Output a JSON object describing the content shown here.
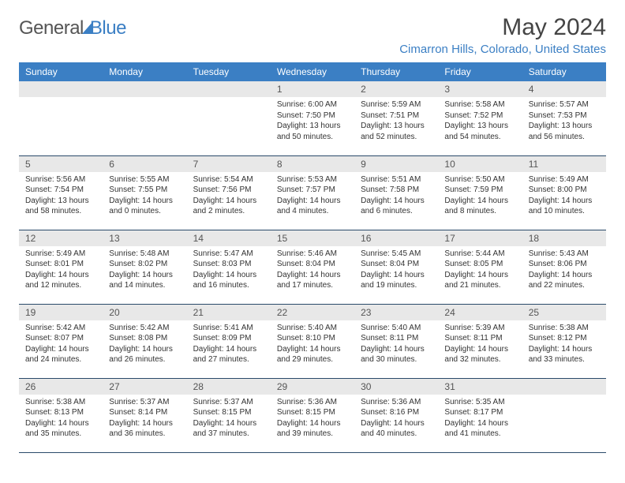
{
  "brand": {
    "part1": "General",
    "part2": "Blue"
  },
  "title": "May 2024",
  "location": "Cimarron Hills, Colorado, United States",
  "weekday_header_bg": "#3b7fc4",
  "weekday_header_fg": "#ffffff",
  "daynum_bg": "#e8e8e8",
  "cell_border_color": "#2a4a6a",
  "weekdays": [
    "Sunday",
    "Monday",
    "Tuesday",
    "Wednesday",
    "Thursday",
    "Friday",
    "Saturday"
  ],
  "weeks": [
    [
      null,
      null,
      null,
      {
        "d": "1",
        "sr": "6:00 AM",
        "ss": "7:50 PM",
        "dh": "13",
        "dm": "50"
      },
      {
        "d": "2",
        "sr": "5:59 AM",
        "ss": "7:51 PM",
        "dh": "13",
        "dm": "52"
      },
      {
        "d": "3",
        "sr": "5:58 AM",
        "ss": "7:52 PM",
        "dh": "13",
        "dm": "54"
      },
      {
        "d": "4",
        "sr": "5:57 AM",
        "ss": "7:53 PM",
        "dh": "13",
        "dm": "56"
      }
    ],
    [
      {
        "d": "5",
        "sr": "5:56 AM",
        "ss": "7:54 PM",
        "dh": "13",
        "dm": "58"
      },
      {
        "d": "6",
        "sr": "5:55 AM",
        "ss": "7:55 PM",
        "dh": "14",
        "dm": "0"
      },
      {
        "d": "7",
        "sr": "5:54 AM",
        "ss": "7:56 PM",
        "dh": "14",
        "dm": "2"
      },
      {
        "d": "8",
        "sr": "5:53 AM",
        "ss": "7:57 PM",
        "dh": "14",
        "dm": "4"
      },
      {
        "d": "9",
        "sr": "5:51 AM",
        "ss": "7:58 PM",
        "dh": "14",
        "dm": "6"
      },
      {
        "d": "10",
        "sr": "5:50 AM",
        "ss": "7:59 PM",
        "dh": "14",
        "dm": "8"
      },
      {
        "d": "11",
        "sr": "5:49 AM",
        "ss": "8:00 PM",
        "dh": "14",
        "dm": "10"
      }
    ],
    [
      {
        "d": "12",
        "sr": "5:49 AM",
        "ss": "8:01 PM",
        "dh": "14",
        "dm": "12"
      },
      {
        "d": "13",
        "sr": "5:48 AM",
        "ss": "8:02 PM",
        "dh": "14",
        "dm": "14"
      },
      {
        "d": "14",
        "sr": "5:47 AM",
        "ss": "8:03 PM",
        "dh": "14",
        "dm": "16"
      },
      {
        "d": "15",
        "sr": "5:46 AM",
        "ss": "8:04 PM",
        "dh": "14",
        "dm": "17"
      },
      {
        "d": "16",
        "sr": "5:45 AM",
        "ss": "8:04 PM",
        "dh": "14",
        "dm": "19"
      },
      {
        "d": "17",
        "sr": "5:44 AM",
        "ss": "8:05 PM",
        "dh": "14",
        "dm": "21"
      },
      {
        "d": "18",
        "sr": "5:43 AM",
        "ss": "8:06 PM",
        "dh": "14",
        "dm": "22"
      }
    ],
    [
      {
        "d": "19",
        "sr": "5:42 AM",
        "ss": "8:07 PM",
        "dh": "14",
        "dm": "24"
      },
      {
        "d": "20",
        "sr": "5:42 AM",
        "ss": "8:08 PM",
        "dh": "14",
        "dm": "26"
      },
      {
        "d": "21",
        "sr": "5:41 AM",
        "ss": "8:09 PM",
        "dh": "14",
        "dm": "27"
      },
      {
        "d": "22",
        "sr": "5:40 AM",
        "ss": "8:10 PM",
        "dh": "14",
        "dm": "29"
      },
      {
        "d": "23",
        "sr": "5:40 AM",
        "ss": "8:11 PM",
        "dh": "14",
        "dm": "30"
      },
      {
        "d": "24",
        "sr": "5:39 AM",
        "ss": "8:11 PM",
        "dh": "14",
        "dm": "32"
      },
      {
        "d": "25",
        "sr": "5:38 AM",
        "ss": "8:12 PM",
        "dh": "14",
        "dm": "33"
      }
    ],
    [
      {
        "d": "26",
        "sr": "5:38 AM",
        "ss": "8:13 PM",
        "dh": "14",
        "dm": "35"
      },
      {
        "d": "27",
        "sr": "5:37 AM",
        "ss": "8:14 PM",
        "dh": "14",
        "dm": "36"
      },
      {
        "d": "28",
        "sr": "5:37 AM",
        "ss": "8:15 PM",
        "dh": "14",
        "dm": "37"
      },
      {
        "d": "29",
        "sr": "5:36 AM",
        "ss": "8:15 PM",
        "dh": "14",
        "dm": "39"
      },
      {
        "d": "30",
        "sr": "5:36 AM",
        "ss": "8:16 PM",
        "dh": "14",
        "dm": "40"
      },
      {
        "d": "31",
        "sr": "5:35 AM",
        "ss": "8:17 PM",
        "dh": "14",
        "dm": "41"
      },
      null
    ]
  ],
  "labels": {
    "sunrise": "Sunrise:",
    "sunset": "Sunset:",
    "daylight_prefix": "Daylight:",
    "hours_word": "hours",
    "and_word": "and",
    "minutes_word": "minutes."
  }
}
